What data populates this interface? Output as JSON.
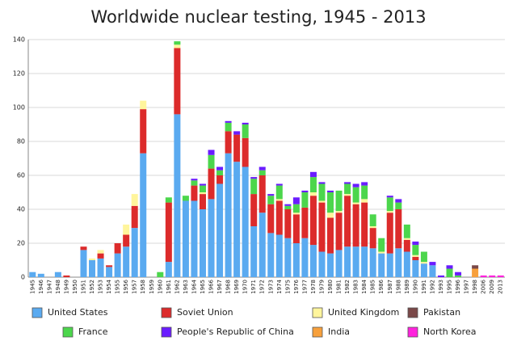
{
  "chart_data": {
    "type": "stacked-bar",
    "title": "Worldwide nuclear testing, 1945 - 2013",
    "categories": [
      "1945",
      "1946",
      "1947",
      "1948",
      "1949",
      "1950",
      "1951",
      "1952",
      "1953",
      "1954",
      "1955",
      "1956",
      "1957",
      "1958",
      "1959",
      "1960",
      "1961",
      "1962",
      "1963",
      "1964",
      "1965",
      "1966",
      "1967",
      "1968",
      "1969",
      "1970",
      "1971",
      "1972",
      "1973",
      "1974",
      "1975",
      "1976",
      "1977",
      "1978",
      "1979",
      "1980",
      "1981",
      "1982",
      "1983",
      "1984",
      "1985",
      "1986",
      "1987",
      "1988",
      "1989",
      "1990",
      "1991",
      "1992",
      "1993",
      "1995",
      "1996",
      "1997",
      "1998",
      "2006",
      "2009",
      "2013"
    ],
    "series": [
      {
        "name": "United States",
        "color": "#5aaaf0",
        "values": [
          3,
          2,
          0,
          3,
          0,
          0,
          16,
          10,
          11,
          6,
          14,
          18,
          29,
          73,
          0,
          0,
          9,
          96,
          45,
          45,
          40,
          46,
          55,
          73,
          68,
          65,
          30,
          38,
          26,
          25,
          23,
          20,
          23,
          19,
          15,
          14,
          16,
          18,
          18,
          18,
          17,
          14,
          14,
          17,
          15,
          10,
          8,
          7,
          0,
          0,
          0,
          0,
          0,
          0,
          0,
          0
        ]
      },
      {
        "name": "Soviet Union",
        "color": "#dc2b2b",
        "values": [
          0,
          0,
          0,
          0,
          1,
          0,
          2,
          0,
          3,
          1,
          6,
          7,
          13,
          26,
          0,
          0,
          35,
          39,
          0,
          9,
          9,
          18,
          5,
          13,
          16,
          17,
          19,
          22,
          17,
          20,
          17,
          17,
          18,
          29,
          29,
          21,
          22,
          30,
          25,
          26,
          12,
          0,
          24,
          23,
          7,
          2,
          0,
          0,
          0,
          0,
          0,
          0,
          0,
          0,
          0,
          0
        ]
      },
      {
        "name": "United Kingdom",
        "color": "#fff59c",
        "values": [
          0,
          0,
          0,
          0,
          0,
          0,
          0,
          1,
          2,
          0,
          0,
          6,
          7,
          5,
          0,
          0,
          0,
          2,
          0,
          0,
          1,
          0,
          0,
          0,
          0,
          0,
          0,
          0,
          0,
          1,
          0,
          1,
          0,
          2,
          1,
          3,
          1,
          1,
          1,
          2,
          1,
          1,
          1,
          0,
          1,
          1,
          1,
          0,
          0,
          0,
          0,
          0,
          0,
          0,
          0,
          0
        ]
      },
      {
        "name": "France",
        "color": "#4cd64c",
        "values": [
          0,
          0,
          0,
          0,
          0,
          0,
          0,
          0,
          0,
          0,
          0,
          0,
          0,
          0,
          0,
          3,
          3,
          2,
          3,
          3,
          4,
          8,
          3,
          5,
          0,
          8,
          9,
          3,
          5,
          8,
          2,
          5,
          9,
          9,
          10,
          12,
          12,
          6,
          9,
          8,
          7,
          8,
          8,
          4,
          8,
          6,
          6,
          0,
          0,
          5,
          1,
          0,
          0,
          0,
          0,
          0
        ]
      },
      {
        "name": "People's Republic of China",
        "color": "#6a1cff",
        "values": [
          0,
          0,
          0,
          0,
          0,
          0,
          0,
          0,
          0,
          0,
          0,
          0,
          0,
          0,
          0,
          0,
          0,
          0,
          0,
          1,
          1,
          3,
          2,
          1,
          2,
          1,
          1,
          2,
          1,
          1,
          1,
          4,
          1,
          3,
          1,
          1,
          0,
          1,
          2,
          2,
          0,
          0,
          1,
          2,
          0,
          2,
          0,
          2,
          1,
          2,
          2,
          0,
          0,
          0,
          0,
          0
        ]
      },
      {
        "name": "India",
        "color": "#f7a03c",
        "values": [
          0,
          0,
          0,
          0,
          0,
          0,
          0,
          0,
          0,
          0,
          0,
          0,
          0,
          0,
          0,
          0,
          0,
          0,
          0,
          0,
          0,
          0,
          0,
          0,
          0,
          0,
          0,
          0,
          0,
          0,
          0,
          0,
          0,
          0,
          0,
          0,
          0,
          0,
          0,
          0,
          0,
          0,
          0,
          0,
          0,
          0,
          0,
          0,
          0,
          0,
          0,
          0,
          5,
          0,
          0,
          0
        ]
      },
      {
        "name": "Pakistan",
        "color": "#7a4848",
        "values": [
          0,
          0,
          0,
          0,
          0,
          0,
          0,
          0,
          0,
          0,
          0,
          0,
          0,
          0,
          0,
          0,
          0,
          0,
          0,
          0,
          0,
          0,
          0,
          0,
          0,
          0,
          0,
          0,
          0,
          0,
          0,
          0,
          0,
          0,
          0,
          0,
          0,
          0,
          0,
          0,
          0,
          0,
          0,
          0,
          0,
          0,
          0,
          0,
          0,
          0,
          0,
          0,
          2,
          0,
          0,
          0
        ]
      },
      {
        "name": "North Korea",
        "color": "#ff22dd",
        "values": [
          0,
          0,
          0,
          0,
          0,
          0,
          0,
          0,
          0,
          0,
          0,
          0,
          0,
          0,
          0,
          0,
          0,
          0,
          0,
          0,
          0,
          0,
          0,
          0,
          0,
          0,
          0,
          0,
          0,
          0,
          0,
          0,
          0,
          0,
          0,
          0,
          0,
          0,
          0,
          0,
          0,
          0,
          0,
          0,
          0,
          0,
          0,
          0,
          0,
          0,
          0,
          0,
          0,
          1,
          1,
          1
        ]
      }
    ],
    "ylim": [
      0,
      140
    ],
    "yticks": [
      0,
      20,
      40,
      60,
      80,
      100,
      120,
      140
    ],
    "grid": true
  }
}
